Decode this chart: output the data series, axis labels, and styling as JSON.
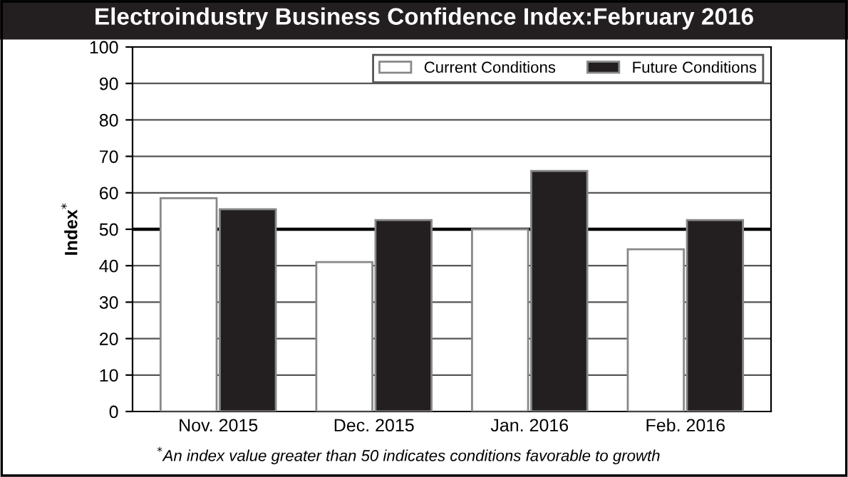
{
  "chart_data": {
    "type": "bar",
    "title": "Electroindustry Business Confidence Index:February 2016",
    "ylabel": "Index$^{*}$",
    "categories": [
      "Nov. 2015",
      "Dec. 2015",
      "Jan. 2016",
      "Feb. 2016"
    ],
    "series": [
      {
        "name": "Current Conditions",
        "color": "#ffffff",
        "values": [
          58.5,
          41,
          50,
          44.5
        ]
      },
      {
        "name": "Future Conditions",
        "color": "#231f20",
        "values": [
          55.5,
          52.5,
          66,
          52.5
        ]
      }
    ],
    "ylim": [
      0,
      100
    ],
    "yticks": [
      0,
      10,
      20,
      30,
      40,
      50,
      60,
      70,
      80,
      90,
      100
    ],
    "grid": "y",
    "legend": "top right",
    "ref_lines": [
      {
        "axis": "y",
        "value": 50,
        "color": "#000000"
      }
    ],
    "annotations": [
      "$^{*}$An index value greater than 50 indicates conditions favorable to growth"
    ]
  }
}
